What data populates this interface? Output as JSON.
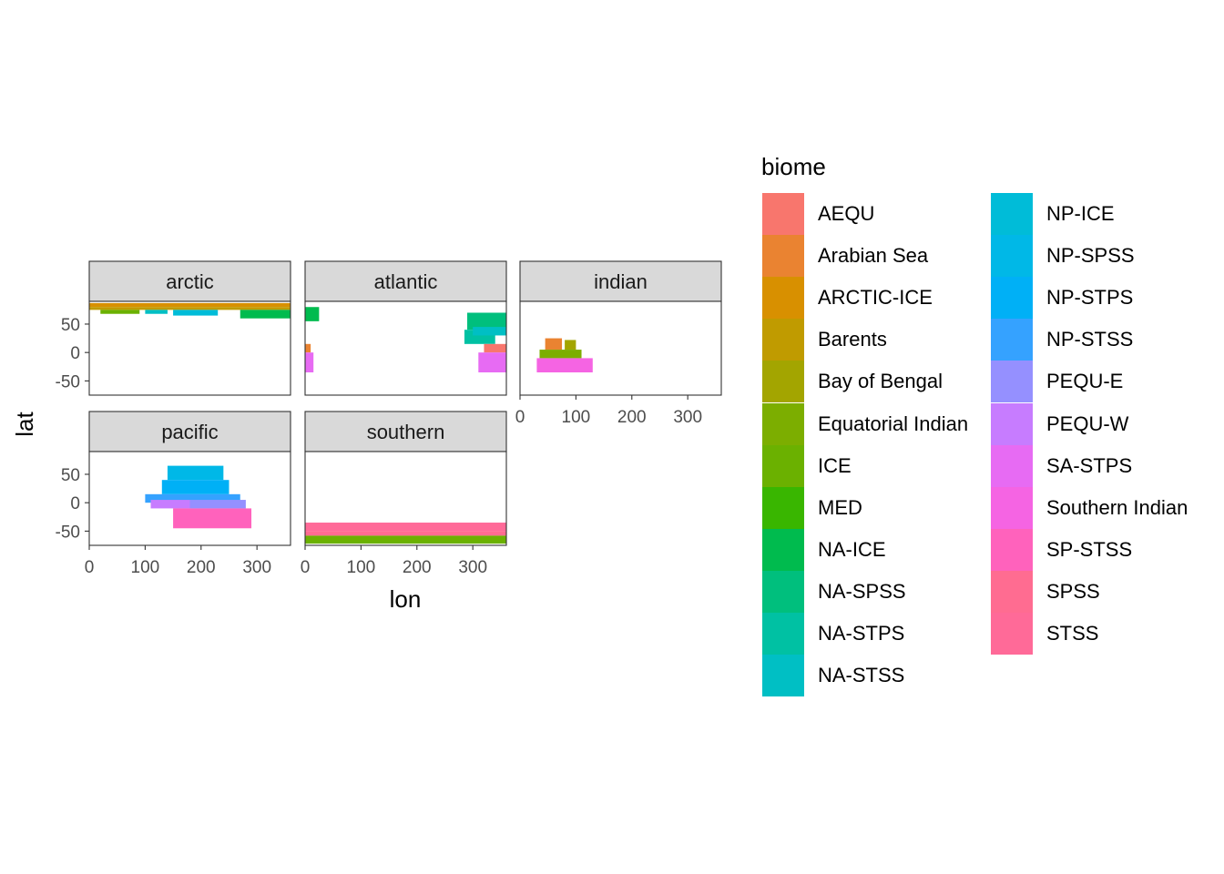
{
  "chart_data": {
    "type": "heatmap",
    "facets": [
      "arctic",
      "atlantic",
      "indian",
      "pacific",
      "southern"
    ],
    "xlabel": "lon",
    "ylabel": "lat",
    "xlim": [
      0,
      360
    ],
    "ylim": [
      -75,
      90
    ],
    "x_ticks": [
      0,
      100,
      200,
      300
    ],
    "y_ticks": [
      -50,
      0,
      50
    ],
    "legend": {
      "title": "biome",
      "placement": "right",
      "entries": [
        {
          "name": "AEQU",
          "color": "#F8766D"
        },
        {
          "name": "Arabian Sea",
          "color": "#EA8331"
        },
        {
          "name": "ARCTIC-ICE",
          "color": "#D89000"
        },
        {
          "name": "Barents",
          "color": "#C09B00"
        },
        {
          "name": "Bay of Bengal",
          "color": "#A3A500"
        },
        {
          "name": "Equatorial Indian",
          "color": "#7CAE00"
        },
        {
          "name": "ICE",
          "color": "#6BB100"
        },
        {
          "name": "MED",
          "color": "#39B600"
        },
        {
          "name": "NA-ICE",
          "color": "#00BB4E"
        },
        {
          "name": "NA-SPSS",
          "color": "#00BF7D"
        },
        {
          "name": "NA-STPS",
          "color": "#00C1A3"
        },
        {
          "name": "NA-STSS",
          "color": "#00BFC4"
        },
        {
          "name": "NP-ICE",
          "color": "#00BCD8"
        },
        {
          "name": "NP-SPSS",
          "color": "#00B8E7"
        },
        {
          "name": "NP-STPS",
          "color": "#00B0F6"
        },
        {
          "name": "NP-STSS",
          "color": "#35A2FF"
        },
        {
          "name": "PEQU-E",
          "color": "#9590FF"
        },
        {
          "name": "PEQU-W",
          "color": "#C77CFF"
        },
        {
          "name": "SA-STPS",
          "color": "#E76BF3"
        },
        {
          "name": "Southern Indian",
          "color": "#F564E3"
        },
        {
          "name": "SP-STSS",
          "color": "#FF62BC"
        },
        {
          "name": "SPSS",
          "color": "#FF6C91"
        },
        {
          "name": "STSS",
          "color": "#FF6A98"
        }
      ]
    },
    "regions": {
      "arctic": [
        {
          "biome": "ARCTIC-ICE",
          "lon": [
            0,
            360
          ],
          "lat": [
            80,
            87
          ]
        },
        {
          "biome": "Barents",
          "lon": [
            0,
            360
          ],
          "lat": [
            75,
            80
          ]
        },
        {
          "biome": "ICE",
          "lon": [
            20,
            90
          ],
          "lat": [
            68,
            75
          ]
        },
        {
          "biome": "NA-ICE",
          "lon": [
            270,
            360
          ],
          "lat": [
            60,
            75
          ]
        },
        {
          "biome": "NP-ICE",
          "lon": [
            150,
            230
          ],
          "lat": [
            65,
            75
          ]
        },
        {
          "biome": "NA-STSS",
          "lon": [
            100,
            140
          ],
          "lat": [
            68,
            75
          ]
        }
      ],
      "atlantic": [
        {
          "biome": "NA-ICE",
          "lon": [
            0,
            25
          ],
          "lat": [
            55,
            80
          ]
        },
        {
          "biome": "NA-SPSS",
          "lon": [
            290,
            360
          ],
          "lat": [
            40,
            70
          ]
        },
        {
          "biome": "NA-STPS",
          "lon": [
            285,
            340
          ],
          "lat": [
            15,
            40
          ]
        },
        {
          "biome": "NA-STSS",
          "lon": [
            300,
            360
          ],
          "lat": [
            30,
            45
          ]
        },
        {
          "biome": "Arabian Sea",
          "lon": [
            0,
            10
          ],
          "lat": [
            0,
            15
          ]
        },
        {
          "biome": "AEQU",
          "lon": [
            320,
            360
          ],
          "lat": [
            0,
            15
          ]
        },
        {
          "biome": "SA-STPS",
          "lon": [
            0,
            15
          ],
          "lat": [
            -35,
            0
          ]
        },
        {
          "biome": "SA-STPS",
          "lon": [
            310,
            360
          ],
          "lat": [
            -35,
            0
          ]
        }
      ],
      "indian": [
        {
          "biome": "Arabian Sea",
          "lon": [
            45,
            75
          ],
          "lat": [
            5,
            25
          ]
        },
        {
          "biome": "Bay of Bengal",
          "lon": [
            80,
            100
          ],
          "lat": [
            5,
            22
          ]
        },
        {
          "biome": "Equatorial Indian",
          "lon": [
            35,
            110
          ],
          "lat": [
            -10,
            5
          ]
        },
        {
          "biome": "Southern Indian",
          "lon": [
            30,
            130
          ],
          "lat": [
            -35,
            -10
          ]
        }
      ],
      "pacific": [
        {
          "biome": "NP-SPSS",
          "lon": [
            140,
            240
          ],
          "lat": [
            40,
            65
          ]
        },
        {
          "biome": "NP-STPS",
          "lon": [
            130,
            250
          ],
          "lat": [
            15,
            40
          ]
        },
        {
          "biome": "NP-STSS",
          "lon": [
            100,
            270
          ],
          "lat": [
            0,
            15
          ]
        },
        {
          "biome": "PEQU-W",
          "lon": [
            110,
            180
          ],
          "lat": [
            -10,
            5
          ]
        },
        {
          "biome": "PEQU-E",
          "lon": [
            180,
            280
          ],
          "lat": [
            -10,
            5
          ]
        },
        {
          "biome": "SP-STSS",
          "lon": [
            150,
            290
          ],
          "lat": [
            -45,
            -10
          ]
        }
      ],
      "southern": [
        {
          "biome": "STSS",
          "lon": [
            0,
            360
          ],
          "lat": [
            -50,
            -35
          ]
        },
        {
          "biome": "SPSS",
          "lon": [
            0,
            360
          ],
          "lat": [
            -58,
            -50
          ]
        },
        {
          "biome": "ICE",
          "lon": [
            0,
            360
          ],
          "lat": [
            -72,
            -58
          ]
        }
      ]
    }
  }
}
